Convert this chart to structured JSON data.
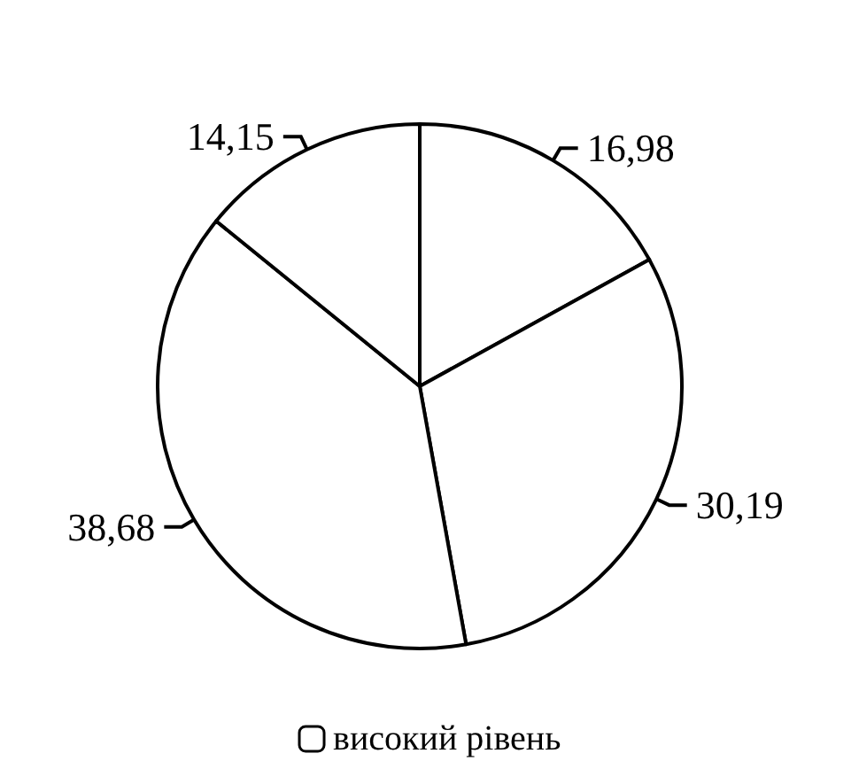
{
  "chart_data": {
    "type": "pie",
    "categories": [
      "високий рівень",
      null,
      null,
      null
    ],
    "values": [
      16.98,
      30.19,
      38.68,
      14.15
    ],
    "colors": [
      "#ffffff",
      "#ffffff",
      "#ffffff",
      "#ffffff"
    ],
    "value_labels": [
      "16,98",
      "30,19",
      "38,68",
      "14,15"
    ],
    "legend": "bottom"
  }
}
